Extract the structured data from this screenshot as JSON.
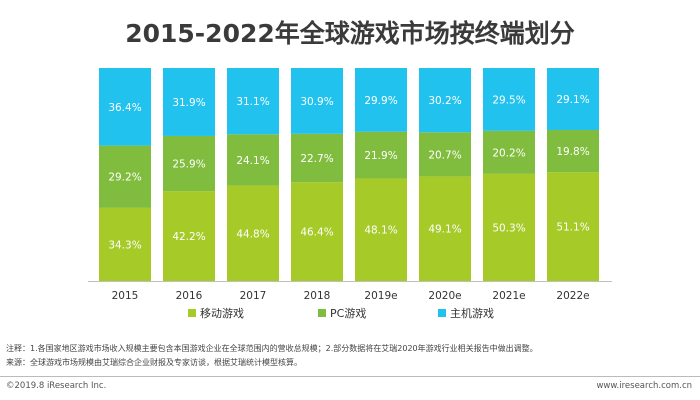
{
  "header": {
    "title": "2015-2022年全球游戏市场按终端划分"
  },
  "colors": {
    "mobile": "#A6CA28",
    "pc": "#80BC3E",
    "console": "#22C2EE"
  },
  "chart_data": {
    "type": "bar",
    "stacked": true,
    "unit": "%",
    "categories": [
      "2015",
      "2016",
      "2017",
      "2018",
      "2019e",
      "2020e",
      "2021e",
      "2022e"
    ],
    "series": [
      {
        "name": "移动游戏",
        "values": [
          34.3,
          42.2,
          44.8,
          46.4,
          48.1,
          49.1,
          50.3,
          51.1
        ]
      },
      {
        "name": "PC游戏",
        "values": [
          29.2,
          25.9,
          24.1,
          22.7,
          21.9,
          20.7,
          20.2,
          19.8
        ]
      },
      {
        "name": "主机游戏",
        "values": [
          36.4,
          31.9,
          31.1,
          30.9,
          29.9,
          30.2,
          29.5,
          29.1
        ]
      }
    ],
    "ylim": [
      0,
      100
    ],
    "grid": false,
    "legend_position": "bottom"
  },
  "notes": {
    "line1": "注释：1.各国家地区游戏市场收入规模主要包含本国游戏企业在全球范围内的营收总规模；2.部分数据将在艾瑞2020年游戏行业相关报告中做出调整。",
    "line2": "来源：全球游戏市场规模由艾瑞综合企业财报及专家访谈，根据艾瑞统计模型核算。"
  },
  "footer": {
    "copyright": "©2019.8 iResearch Inc.",
    "website": "www.iresearch.com.cn"
  }
}
